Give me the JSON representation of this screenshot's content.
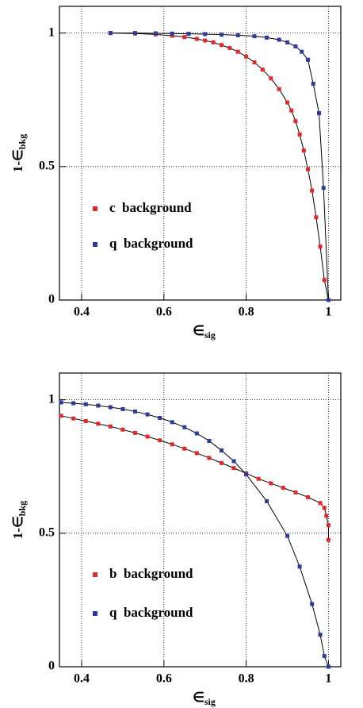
{
  "chart_data": [
    {
      "type": "line",
      "ylabel": "1-∈",
      "ylabel_sub": "bkg",
      "xlabel": "∈",
      "xlabel_sub": "sig",
      "xlim": [
        0.346,
        1.03
      ],
      "ylim": [
        0,
        1.1
      ],
      "xticks": [
        0.4,
        0.6,
        0.8,
        1
      ],
      "yticks": [
        0,
        0.5,
        1
      ],
      "grid": true,
      "legend": "lower left",
      "series": [
        {
          "name": "c  background",
          "color": "#e3282c",
          "x": [
            0.47,
            0.53,
            0.58,
            0.62,
            0.65,
            0.68,
            0.7,
            0.72,
            0.74,
            0.76,
            0.78,
            0.8,
            0.82,
            0.84,
            0.86,
            0.88,
            0.9,
            0.91,
            0.92,
            0.93,
            0.94,
            0.95,
            0.96,
            0.97,
            0.98,
            0.99,
            1
          ],
          "values": [
            1,
            0.998,
            0.995,
            0.99,
            0.985,
            0.978,
            0.972,
            0.965,
            0.955,
            0.944,
            0.93,
            0.912,
            0.89,
            0.863,
            0.83,
            0.79,
            0.74,
            0.71,
            0.67,
            0.62,
            0.56,
            0.49,
            0.41,
            0.31,
            0.2,
            0.075,
            0
          ]
        },
        {
          "name": "q  background",
          "color": "#2b3c9c",
          "x": [
            0.47,
            0.53,
            0.58,
            0.62,
            0.66,
            0.7,
            0.74,
            0.78,
            0.82,
            0.85,
            0.88,
            0.9,
            0.92,
            0.935,
            0.95,
            0.963,
            0.977,
            0.988,
            1
          ],
          "values": [
            1,
            1,
            0.999,
            0.998,
            0.997,
            0.996,
            0.994,
            0.992,
            0.988,
            0.983,
            0.975,
            0.965,
            0.95,
            0.93,
            0.9,
            0.81,
            0.7,
            0.42,
            0
          ]
        }
      ]
    },
    {
      "type": "line",
      "ylabel": "1-∈",
      "ylabel_sub": "bkg",
      "xlabel": "∈",
      "xlabel_sub": "sig",
      "xlim": [
        0.346,
        1.03
      ],
      "ylim": [
        0,
        1.1
      ],
      "xticks": [
        0.4,
        0.6,
        0.8,
        1
      ],
      "yticks": [
        0,
        0.5,
        1
      ],
      "grid": true,
      "legend": "lower left",
      "series": [
        {
          "name": "b  background",
          "color": "#e3282c",
          "x": [
            0.35,
            0.38,
            0.41,
            0.44,
            0.47,
            0.5,
            0.53,
            0.56,
            0.59,
            0.62,
            0.65,
            0.68,
            0.71,
            0.74,
            0.77,
            0.8,
            0.83,
            0.86,
            0.89,
            0.92,
            0.95,
            0.98,
            0.99,
            0.995,
            1,
            1
          ],
          "values": [
            0.94,
            0.93,
            0.92,
            0.91,
            0.9,
            0.888,
            0.876,
            0.862,
            0.848,
            0.833,
            0.817,
            0.8,
            0.782,
            0.763,
            0.744,
            0.724,
            0.704,
            0.687,
            0.67,
            0.653,
            0.635,
            0.613,
            0.595,
            0.565,
            0.53,
            0.475
          ]
        },
        {
          "name": "q  background",
          "color": "#2b3c9c",
          "x": [
            0.35,
            0.38,
            0.41,
            0.44,
            0.47,
            0.5,
            0.53,
            0.56,
            0.59,
            0.62,
            0.65,
            0.68,
            0.71,
            0.74,
            0.77,
            0.8,
            0.85,
            0.9,
            0.93,
            0.96,
            0.98,
            0.99,
            1
          ],
          "values": [
            0.99,
            0.987,
            0.983,
            0.978,
            0.972,
            0.965,
            0.956,
            0.945,
            0.932,
            0.916,
            0.897,
            0.874,
            0.846,
            0.81,
            0.77,
            0.72,
            0.62,
            0.49,
            0.375,
            0.235,
            0.12,
            0.04,
            0
          ]
        }
      ]
    }
  ]
}
